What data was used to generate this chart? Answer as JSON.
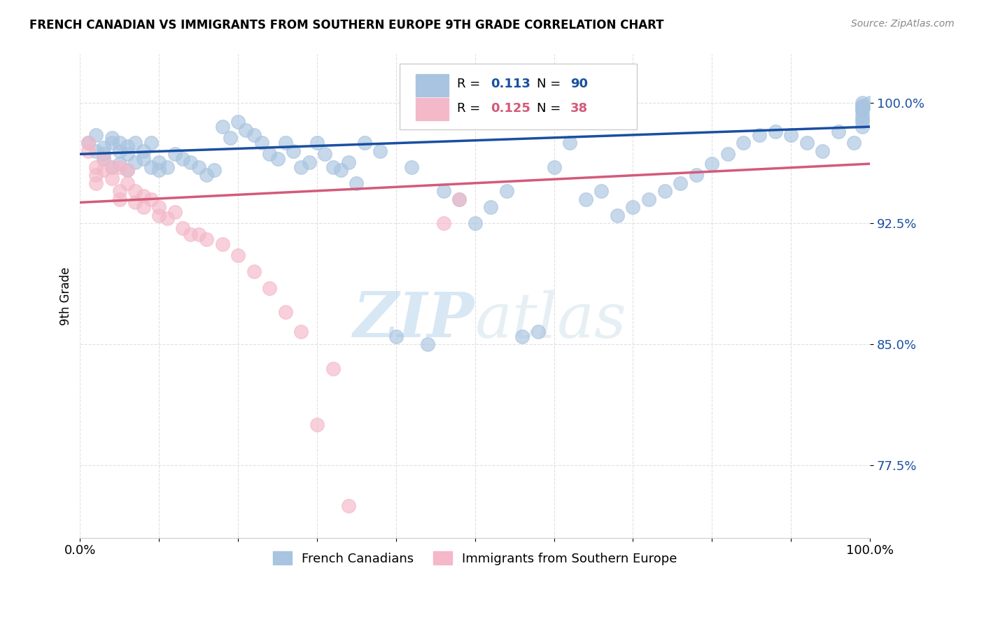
{
  "title": "FRENCH CANADIAN VS IMMIGRANTS FROM SOUTHERN EUROPE 9TH GRADE CORRELATION CHART",
  "source": "Source: ZipAtlas.com",
  "ylabel": "9th Grade",
  "yticks": [
    0.775,
    0.85,
    0.925,
    1.0
  ],
  "ytick_labels": [
    "77.5%",
    "85.0%",
    "92.5%",
    "100.0%"
  ],
  "xlim": [
    0.0,
    1.0
  ],
  "ylim": [
    0.73,
    1.03
  ],
  "legend_r1": "R = 0.113",
  "legend_n1": "N = 90",
  "legend_r2": "R = 0.125",
  "legend_n2": "N = 38",
  "legend_label1": "French Canadians",
  "legend_label2": "Immigrants from Southern Europe",
  "blue_color": "#a8c4e0",
  "blue_line_color": "#1a4fa0",
  "pink_color": "#f4b8c8",
  "pink_line_color": "#d45a7a",
  "blue_scatter_x": [
    0.01,
    0.02,
    0.02,
    0.03,
    0.03,
    0.03,
    0.04,
    0.04,
    0.04,
    0.05,
    0.05,
    0.05,
    0.06,
    0.06,
    0.06,
    0.07,
    0.07,
    0.08,
    0.08,
    0.09,
    0.09,
    0.1,
    0.1,
    0.11,
    0.12,
    0.13,
    0.14,
    0.15,
    0.16,
    0.17,
    0.18,
    0.19,
    0.2,
    0.21,
    0.22,
    0.23,
    0.24,
    0.25,
    0.26,
    0.27,
    0.28,
    0.29,
    0.3,
    0.31,
    0.32,
    0.33,
    0.34,
    0.35,
    0.36,
    0.38,
    0.4,
    0.42,
    0.44,
    0.46,
    0.48,
    0.5,
    0.52,
    0.54,
    0.56,
    0.58,
    0.6,
    0.62,
    0.64,
    0.66,
    0.68,
    0.7,
    0.72,
    0.74,
    0.76,
    0.78,
    0.8,
    0.82,
    0.84,
    0.86,
    0.88,
    0.9,
    0.92,
    0.94,
    0.96,
    0.98,
    0.99,
    0.99,
    0.99,
    0.99,
    0.99,
    0.99,
    0.99,
    0.99,
    0.99,
    1.0
  ],
  "blue_scatter_y": [
    0.975,
    0.97,
    0.98,
    0.972,
    0.965,
    0.968,
    0.975,
    0.96,
    0.978,
    0.97,
    0.962,
    0.975,
    0.968,
    0.958,
    0.973,
    0.975,
    0.963,
    0.97,
    0.965,
    0.975,
    0.96,
    0.963,
    0.958,
    0.96,
    0.968,
    0.965,
    0.963,
    0.96,
    0.955,
    0.958,
    0.985,
    0.978,
    0.988,
    0.983,
    0.98,
    0.975,
    0.968,
    0.965,
    0.975,
    0.97,
    0.96,
    0.963,
    0.975,
    0.968,
    0.96,
    0.958,
    0.963,
    0.95,
    0.975,
    0.97,
    0.855,
    0.96,
    0.85,
    0.945,
    0.94,
    0.925,
    0.935,
    0.945,
    0.855,
    0.858,
    0.96,
    0.975,
    0.94,
    0.945,
    0.93,
    0.935,
    0.94,
    0.945,
    0.95,
    0.955,
    0.962,
    0.968,
    0.975,
    0.98,
    0.982,
    0.98,
    0.975,
    0.97,
    0.982,
    0.975,
    0.995,
    0.992,
    0.99,
    0.988,
    0.985,
    0.998,
    0.997,
    0.996,
    1.0,
    1.0
  ],
  "pink_scatter_x": [
    0.01,
    0.01,
    0.02,
    0.02,
    0.02,
    0.03,
    0.03,
    0.04,
    0.04,
    0.05,
    0.05,
    0.05,
    0.06,
    0.06,
    0.07,
    0.07,
    0.08,
    0.08,
    0.09,
    0.1,
    0.1,
    0.11,
    0.12,
    0.13,
    0.14,
    0.15,
    0.16,
    0.18,
    0.2,
    0.22,
    0.24,
    0.26,
    0.28,
    0.3,
    0.32,
    0.34,
    0.46,
    0.48
  ],
  "pink_scatter_y": [
    0.975,
    0.97,
    0.96,
    0.955,
    0.95,
    0.965,
    0.958,
    0.96,
    0.953,
    0.96,
    0.945,
    0.94,
    0.958,
    0.95,
    0.945,
    0.938,
    0.942,
    0.935,
    0.94,
    0.93,
    0.935,
    0.928,
    0.932,
    0.922,
    0.918,
    0.918,
    0.915,
    0.912,
    0.905,
    0.895,
    0.885,
    0.87,
    0.858,
    0.8,
    0.835,
    0.75,
    0.925,
    0.94
  ],
  "blue_trendline_x": [
    0.0,
    1.0
  ],
  "blue_trendline_y": [
    0.968,
    0.985
  ],
  "pink_trendline_x": [
    0.0,
    1.0
  ],
  "pink_trendline_y": [
    0.938,
    0.962
  ],
  "watermark_zip": "ZIP",
  "watermark_atlas": "atlas",
  "background_color": "#ffffff",
  "grid_color": "#dddddd"
}
